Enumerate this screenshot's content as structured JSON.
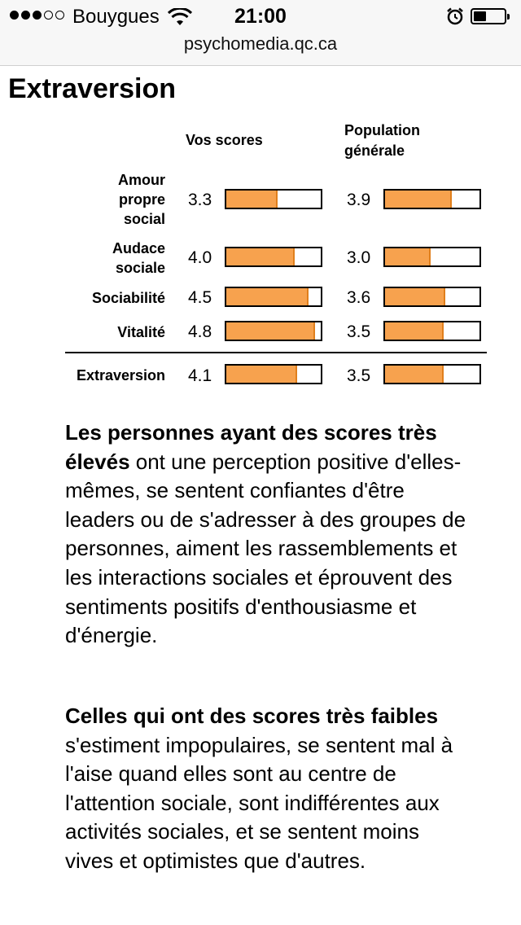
{
  "status_bar": {
    "carrier": "Bouygues",
    "time": "21:00",
    "signal_bars_filled": 3,
    "signal_bars_total": 5,
    "battery_level": 0.3
  },
  "browser": {
    "url": "psychomedia.qc.ca"
  },
  "section_title": "Extraversion",
  "table": {
    "col_you": "Vos scores",
    "col_pop_line1": "Population",
    "col_pop_line2": "générale",
    "scale_max": 5,
    "rows": [
      {
        "label_lines": [
          "Amour",
          "propre",
          "social"
        ],
        "you": "3.3",
        "you_fill": 0.54,
        "pop": "3.9",
        "pop_fill": 0.71
      },
      {
        "label_lines": [
          "Audace",
          "sociale"
        ],
        "you": "4.0",
        "you_fill": 0.72,
        "pop": "3.0",
        "pop_fill": 0.48
      },
      {
        "label_lines": [
          "Sociabilité"
        ],
        "you": "4.5",
        "you_fill": 0.87,
        "pop": "3.6",
        "pop_fill": 0.64
      },
      {
        "label_lines": [
          "Vitalité"
        ],
        "you": "4.8",
        "you_fill": 0.94,
        "pop": "3.5",
        "pop_fill": 0.62
      }
    ],
    "total": {
      "label": "Extraversion",
      "you": "4.1",
      "you_fill": 0.75,
      "pop": "3.5",
      "pop_fill": 0.62
    }
  },
  "paragraph_high": {
    "bold": "Les personnes ayant des scores très élevés",
    "text": " ont une perception positive d'elles-mêmes, se sentent confiantes d'être leaders ou de s'adresser à des groupes de personnes, aiment les rassemblements et les interactions sociales et éprouvent des sentiments positifs d'enthousiasme et d'énergie."
  },
  "paragraph_low": {
    "bold": "Celles qui ont des scores très faibles",
    "text": " s'estiment impopulaires, se sentent mal à l'aise quand elles sont au centre de l'attention sociale, sont indifférentes aux activités sociales, et se sentent moins vives et optimistes que d'autres."
  },
  "colors": {
    "bar_fill": "#f7a24e",
    "bar_edge": "#e07f1c"
  }
}
